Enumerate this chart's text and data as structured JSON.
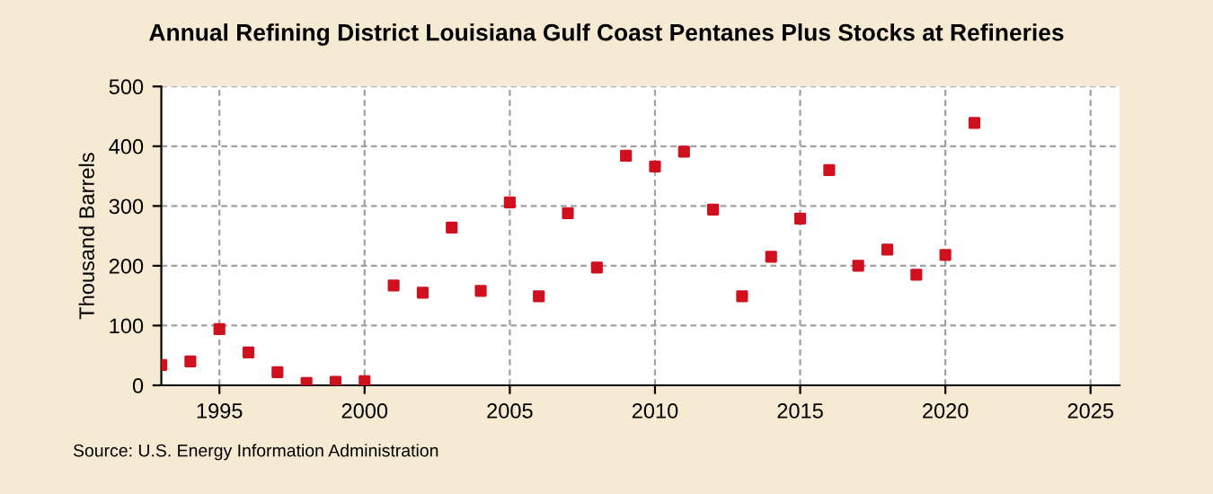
{
  "chart_data": {
    "type": "scatter",
    "title": "Annual Refining District Louisiana Gulf Coast Pentanes Plus Stocks at Refineries",
    "ylabel": "Thousand Barrels",
    "x": [
      1993,
      1994,
      1995,
      1996,
      1997,
      1998,
      1999,
      2000,
      2001,
      2002,
      2003,
      2004,
      2005,
      2006,
      2007,
      2008,
      2009,
      2010,
      2011,
      2012,
      2013,
      2014,
      2015,
      2016,
      2017,
      2018,
      2019,
      2020,
      2021
    ],
    "series": [
      {
        "color": "#d0101e",
        "values": [
          34,
          40,
          94,
          55,
          22,
          4,
          6,
          7,
          167,
          155,
          264,
          158,
          306,
          149,
          288,
          197,
          384,
          366,
          391,
          294,
          149,
          215,
          279,
          360,
          200,
          227,
          185,
          218,
          439
        ]
      }
    ],
    "xlim": [
      1993,
      2026
    ],
    "xticks": [
      1995,
      2000,
      2005,
      2010,
      2015,
      2020,
      2025
    ],
    "ylim": [
      0,
      500
    ],
    "yticks": [
      0,
      100,
      200,
      300,
      400,
      500
    ],
    "grid": true,
    "marker": "square",
    "annotations": [
      "Source: U.S. Energy Information Administration"
    ]
  }
}
